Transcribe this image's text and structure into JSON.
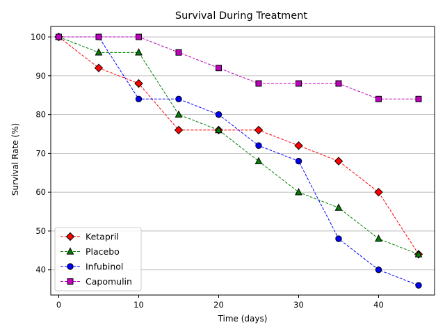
{
  "chart_data": {
    "type": "line",
    "title": "Survival During Treatment",
    "xlabel": "Time (days)",
    "ylabel": "Survival Rate (%)",
    "x": [
      0,
      5,
      10,
      15,
      20,
      25,
      30,
      35,
      40,
      45
    ],
    "xlim": [
      -1,
      47
    ],
    "ylim": [
      33.5,
      102.7
    ],
    "xticks": [
      0,
      10,
      20,
      30,
      40
    ],
    "yticks": [
      40,
      50,
      60,
      70,
      80,
      90,
      100
    ],
    "grid": "horizontal",
    "legend_position": "lower left",
    "series": [
      {
        "name": "Ketapril",
        "color": "#ff0000",
        "marker": "diamond",
        "values": [
          100,
          92,
          88,
          76,
          76,
          76,
          72,
          68,
          60,
          44
        ]
      },
      {
        "name": "Placebo",
        "color": "#008000",
        "marker": "triangle",
        "values": [
          100,
          96,
          96,
          80,
          76,
          68,
          60,
          56,
          48,
          44
        ]
      },
      {
        "name": "Infubinol",
        "color": "#0000ff",
        "marker": "circle",
        "values": [
          100,
          100,
          84,
          84,
          80,
          72,
          68,
          48,
          40,
          36
        ]
      },
      {
        "name": "Capomulin",
        "color": "#bf00bf",
        "marker": "square",
        "values": [
          100,
          100,
          100,
          96,
          92,
          88,
          88,
          88,
          84,
          84
        ]
      }
    ]
  }
}
